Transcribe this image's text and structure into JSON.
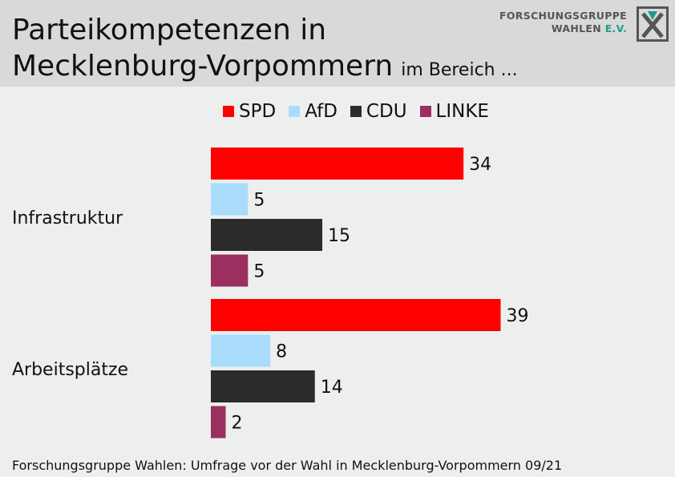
{
  "header": {
    "title_line1": "Parteikompetenzen in",
    "title_line2": "Mecklenburg-Vorpommern",
    "title_suffix": "im Bereich ...",
    "logo_line1": "FORSCHUNGSGRUPPE",
    "logo_line2": "WAHLEN",
    "logo_suffix": "E.V."
  },
  "footer": {
    "source": "Forschungsgruppe Wahlen: Umfrage vor der Wahl in Mecklenburg-Vorpommern 09/21"
  },
  "chart_data": {
    "type": "bar",
    "orientation": "horizontal",
    "categories": [
      "Infrastruktur",
      "Arbeitsplätze"
    ],
    "series": [
      {
        "name": "SPD",
        "color": "#ff0000",
        "values": [
          34,
          39
        ]
      },
      {
        "name": "AfD",
        "color": "#a8dcfa",
        "values": [
          5,
          8
        ]
      },
      {
        "name": "CDU",
        "color": "#2b2b2b",
        "values": [
          15,
          14
        ]
      },
      {
        "name": "LINKE",
        "color": "#9b3060",
        "values": [
          5,
          2
        ]
      }
    ],
    "legend_position": "top",
    "grid": false
  }
}
